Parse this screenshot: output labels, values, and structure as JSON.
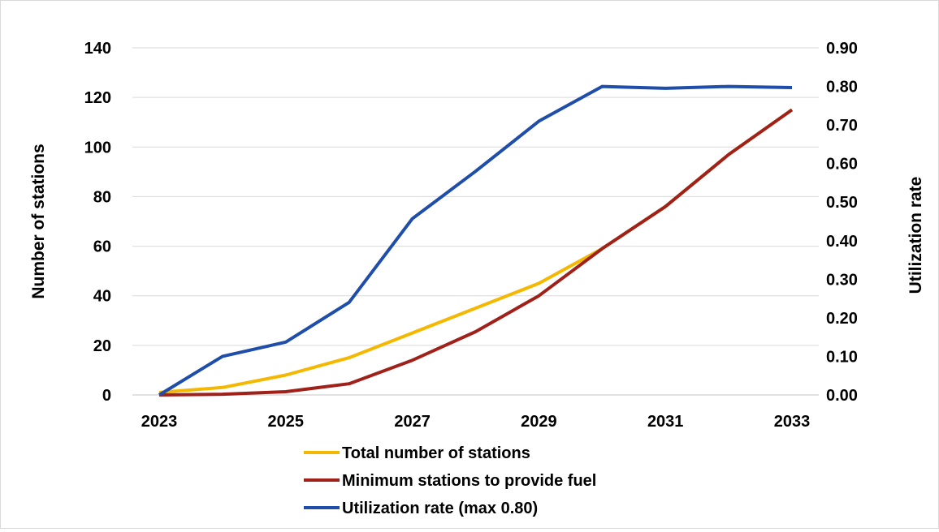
{
  "chart_data": {
    "type": "line",
    "title": "",
    "xlabel": "",
    "ylabel": "Number of stations",
    "y2label": "Utilization rate",
    "x": [
      2023,
      2024,
      2025,
      2026,
      2027,
      2028,
      2029,
      2030,
      2031,
      2032,
      2033
    ],
    "x_tick_labels": [
      "2023",
      "2025",
      "2027",
      "2029",
      "2031",
      "2033"
    ],
    "ylim": [
      0,
      140
    ],
    "y_tick_labels": [
      "0",
      "20",
      "40",
      "60",
      "80",
      "100",
      "120",
      "140"
    ],
    "y2lim": [
      0,
      0.9
    ],
    "y2_tick_labels": [
      "0.00",
      "0.10",
      "0.20",
      "0.30",
      "0.40",
      "0.50",
      "0.60",
      "0.70",
      "0.80",
      "0.90"
    ],
    "grid": "horizontal",
    "legend_position": "bottom",
    "series": [
      {
        "name": "Total number of stations",
        "axis": "left",
        "color": "#F5B800",
        "values": [
          1,
          3,
          8,
          15,
          25,
          35,
          45,
          59,
          76,
          97,
          115
        ]
      },
      {
        "name": "Minimum stations to provide fuel",
        "axis": "left",
        "color": "#A0201A",
        "values": [
          0,
          0.3,
          1.3,
          4.5,
          14,
          25.5,
          40,
          59,
          76,
          97,
          115
        ]
      },
      {
        "name": "Utilization rate (max 0.80)",
        "axis": "right",
        "color": "#1F4EAA",
        "values": [
          0,
          0.1,
          0.137,
          0.24,
          0.457,
          0.58,
          0.71,
          0.8,
          0.795,
          0.8,
          0.797
        ]
      }
    ]
  }
}
